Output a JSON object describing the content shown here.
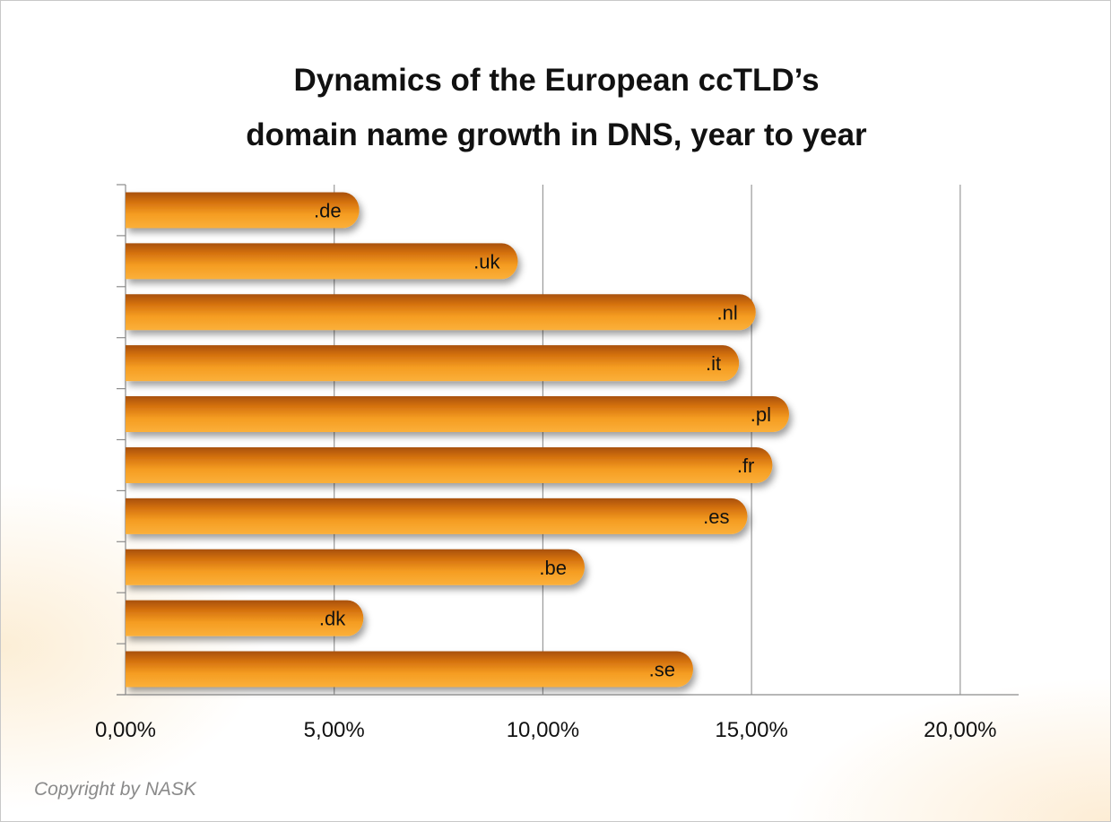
{
  "chart_data": {
    "type": "bar",
    "orientation": "horizontal",
    "title_lines": [
      "Dynamics of the European ccTLD’s",
      "domain name growth in DNS, year to year"
    ],
    "categories": [
      ".de",
      ".uk",
      ".nl",
      ".it",
      ".pl",
      ".fr",
      ".es",
      ".be",
      ".dk",
      ".se"
    ],
    "values": [
      5.6,
      9.4,
      15.1,
      14.7,
      15.9,
      15.5,
      14.9,
      11.0,
      5.7,
      13.6
    ],
    "value_unit": "%",
    "xlim": [
      0,
      21.4
    ],
    "x_ticks": [
      0,
      5,
      10,
      15,
      20
    ],
    "x_tick_labels": [
      "0,00%",
      "5,00%",
      "10,00%",
      "15,00%",
      "20,00%"
    ],
    "xlabel": "",
    "ylabel": "",
    "grid": "vertical",
    "legend": "none",
    "bar_color": "#f39a1e",
    "bar_dark_color": "#c9650a",
    "gridline_color": "#9a9a9a"
  },
  "footer": {
    "copyright": "Copyright by NASK"
  }
}
